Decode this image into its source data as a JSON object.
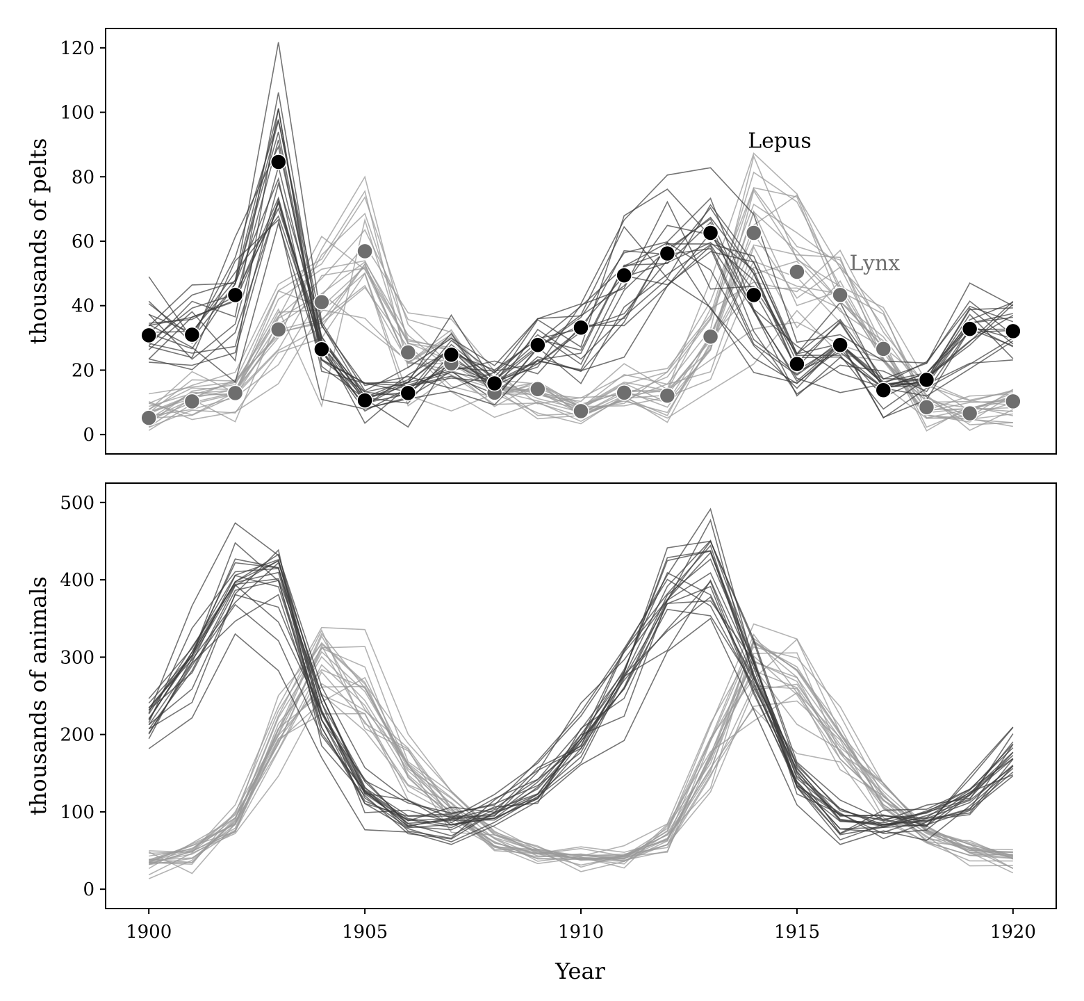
{
  "chart_data": [
    {
      "type": "line",
      "panel": "top",
      "title": "",
      "xlabel": "",
      "ylabel": "thousands of pelts",
      "xlim": [
        1899,
        1921
      ],
      "ylim": [
        -6,
        126
      ],
      "yticks": [
        0,
        20,
        40,
        60,
        80,
        100,
        120
      ],
      "x": [
        1900,
        1901,
        1902,
        1903,
        1904,
        1905,
        1906,
        1907,
        1908,
        1909,
        1910,
        1911,
        1912,
        1913,
        1914,
        1915,
        1916,
        1917,
        1918,
        1919,
        1920
      ],
      "annotations": [
        {
          "text": "Lepus",
          "x": 1914.6,
          "y": 89,
          "color": "#000000"
        },
        {
          "text": "Lynx",
          "x": 1916.8,
          "y": 51,
          "color": "#6e6e6e"
        }
      ],
      "series": [
        {
          "name": "Lepus",
          "kind": "observed",
          "color": "#000000",
          "values": [
            30.8,
            31.0,
            43.3,
            84.6,
            26.5,
            10.6,
            12.9,
            24.8,
            15.9,
            27.8,
            33.2,
            49.4,
            56.2,
            62.6,
            43.3,
            21.9,
            27.8,
            13.8,
            17.0,
            32.8,
            32.1
          ]
        },
        {
          "name": "Lynx",
          "kind": "observed",
          "color": "#6e6e6e",
          "values": [
            5.2,
            10.3,
            12.9,
            32.6,
            41.1,
            56.9,
            25.5,
            22.1,
            13.0,
            14.1,
            7.3,
            13.0,
            12.1,
            30.4,
            62.6,
            50.5,
            43.3,
            26.6,
            8.5,
            6.6,
            10.3
          ]
        }
      ],
      "posterior_band": true
    },
    {
      "type": "line",
      "panel": "bottom",
      "title": "",
      "xlabel": "Year",
      "ylabel": "thousands of animals",
      "xlim": [
        1899,
        1921
      ],
      "ylim": [
        -25,
        525
      ],
      "yticks": [
        0,
        100,
        200,
        300,
        400,
        500
      ],
      "xticks": [
        1900,
        1905,
        1910,
        1915,
        1920
      ],
      "x": [
        1900,
        1901,
        1902,
        1903,
        1904,
        1905,
        1906,
        1907,
        1908,
        1909,
        1910,
        1911,
        1912,
        1913,
        1914,
        1915,
        1916,
        1917,
        1918,
        1919,
        1920
      ],
      "series": [
        {
          "name": "Lepus",
          "kind": "latent",
          "color": "#000000",
          "values": [
            205,
            290,
            385,
            385,
            220,
            120,
            85,
            82,
            95,
            130,
            190,
            270,
            360,
            400,
            270,
            140,
            90,
            78,
            88,
            115,
            175
          ]
        },
        {
          "name": "Lynx",
          "kind": "latent",
          "color": "#777777",
          "values": [
            38,
            45,
            85,
            200,
            300,
            255,
            160,
            100,
            65,
            45,
            38,
            40,
            65,
            170,
            290,
            270,
            190,
            115,
            70,
            50,
            40
          ]
        }
      ],
      "posterior_band": true
    }
  ]
}
